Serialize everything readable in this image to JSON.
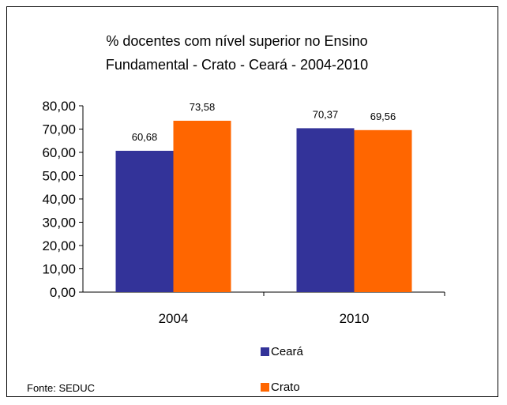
{
  "chart_data": {
    "type": "bar",
    "title_line1": "% docentes com nível  superior no Ensino",
    "title_line2": "Fundamental  - Crato -  Ceará - 2004-2010",
    "categories": [
      "2004",
      "2010"
    ],
    "series": [
      {
        "name": "Ceará",
        "values": [
          60.68,
          70.37
        ],
        "labels": [
          "60,68",
          "70,37"
        ],
        "color": "#333399"
      },
      {
        "name": "Crato",
        "values": [
          73.58,
          69.56
        ],
        "labels": [
          "73,58",
          "69,56"
        ],
        "color": "#FF6600"
      }
    ],
    "ylim": [
      0,
      80
    ],
    "yticks": [
      "0,00",
      "10,00",
      "20,00",
      "30,00",
      "40,00",
      "50,00",
      "60,00",
      "70,00",
      "80,00"
    ],
    "grid": false,
    "legend_position": "bottom"
  },
  "source": "Fonte: SEDUC"
}
